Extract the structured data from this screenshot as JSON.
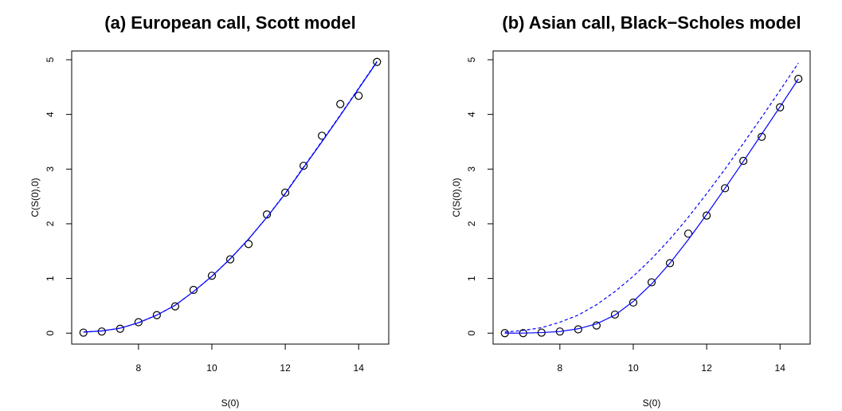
{
  "chart_data": [
    {
      "type": "scatter-line",
      "title": "(a) European call, Scott model",
      "x_label": "S(0)",
      "y_label": "C(S(0),0)",
      "x": [
        6.5,
        7,
        7.5,
        8,
        8.5,
        9,
        9.5,
        10,
        10.5,
        11,
        11.5,
        12,
        12.5,
        13,
        13.5,
        14,
        14.5
      ],
      "series": [
        {
          "mode": "points",
          "color": "#000000",
          "values": [
            0.01,
            0.03,
            0.08,
            0.2,
            0.33,
            0.49,
            0.79,
            1.05,
            1.35,
            1.63,
            2.17,
            2.57,
            3.06,
            3.61,
            4.19,
            4.34,
            4.96
          ]
        },
        {
          "mode": "line",
          "color": "#0000ff",
          "values": [
            0.02,
            0.04,
            0.09,
            0.19,
            0.33,
            0.51,
            0.76,
            1.04,
            1.36,
            1.72,
            2.12,
            2.55,
            3.03,
            3.5,
            3.98,
            4.47,
            4.96
          ]
        },
        {
          "mode": "dashed",
          "color": "#0000ff",
          "values": [
            0.02,
            0.04,
            0.09,
            0.19,
            0.33,
            0.51,
            0.76,
            1.04,
            1.36,
            1.72,
            2.12,
            2.56,
            3.04,
            3.51,
            3.99,
            4.48,
            4.97
          ]
        }
      ],
      "xlim": [
        6.18,
        14.82
      ],
      "xticks": [
        8,
        10,
        12,
        14
      ],
      "ylim": [
        -0.2,
        5.16
      ],
      "yticks": [
        0,
        1,
        2,
        3,
        4,
        5
      ]
    },
    {
      "type": "scatter-line",
      "title": "(b) Asian call, Black−Scholes model",
      "x_label": "S(0)",
      "y_label": "C(S(0),0)",
      "x": [
        6.5,
        7,
        7.5,
        8,
        8.5,
        9,
        9.5,
        10,
        10.5,
        11,
        11.5,
        12,
        12.5,
        13,
        13.5,
        14,
        14.5
      ],
      "series": [
        {
          "mode": "points",
          "color": "#000000",
          "values": [
            0.0,
            0.0,
            0.01,
            0.03,
            0.07,
            0.14,
            0.34,
            0.56,
            0.93,
            1.28,
            1.82,
            2.15,
            2.65,
            3.15,
            3.59,
            4.13,
            4.65
          ]
        },
        {
          "mode": "line",
          "color": "#0000ff",
          "values": [
            0.0,
            0.001,
            0.01,
            0.03,
            0.08,
            0.17,
            0.33,
            0.58,
            0.9,
            1.28,
            1.71,
            2.17,
            2.65,
            3.14,
            3.64,
            4.14,
            4.65
          ]
        },
        {
          "mode": "dashed",
          "color": "#0000ff",
          "values": [
            0.02,
            0.05,
            0.1,
            0.2,
            0.33,
            0.52,
            0.76,
            1.04,
            1.36,
            1.72,
            2.12,
            2.55,
            3.0,
            3.47,
            3.95,
            4.44,
            4.94
          ]
        }
      ],
      "xlim": [
        6.18,
        14.82
      ],
      "xticks": [
        8,
        10,
        12,
        14
      ],
      "ylim": [
        -0.2,
        5.16
      ],
      "yticks": [
        0,
        1,
        2,
        3,
        4,
        5
      ]
    }
  ]
}
